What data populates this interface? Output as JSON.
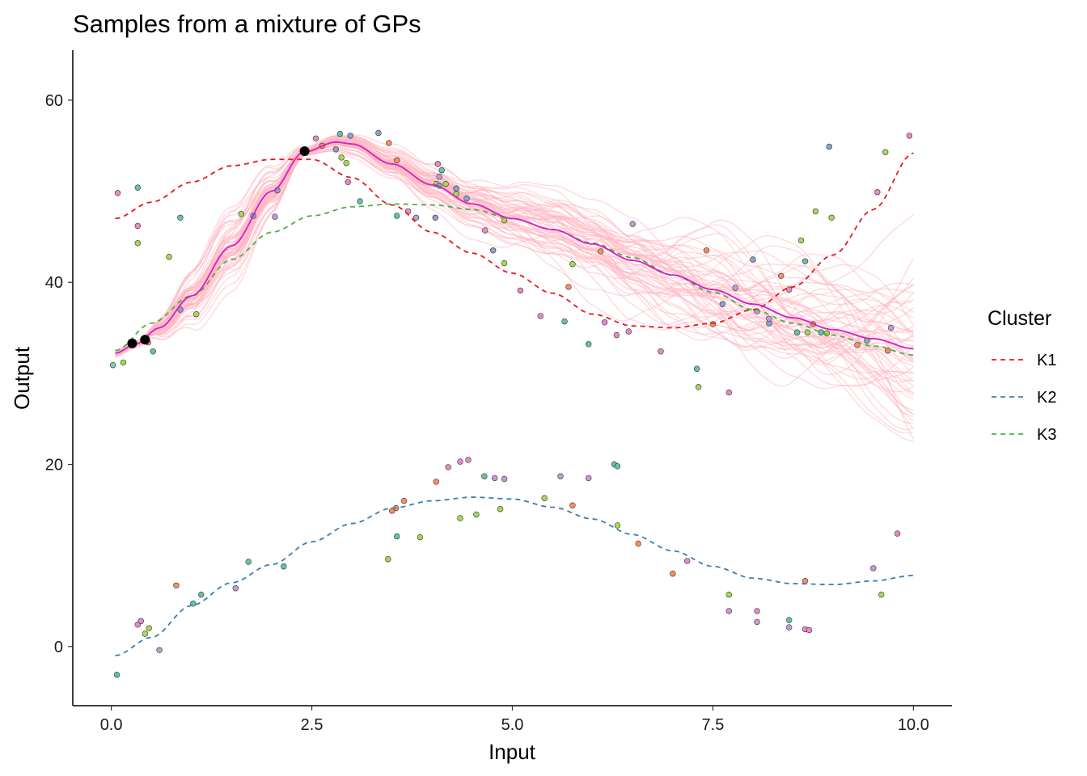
{
  "chart_data": {
    "type": "line",
    "title": "Samples from a mixture of GPs",
    "xlabel": "Input",
    "ylabel": "Output",
    "xlim": [
      -0.48,
      10.48
    ],
    "ylim": [
      -6.5,
      65.5
    ],
    "xticks": [
      0,
      2.5,
      5,
      7.5,
      10
    ],
    "xtick_labels": [
      "0.0",
      "2.5",
      "5.0",
      "7.5",
      "10.0"
    ],
    "yticks": [
      0,
      20,
      40,
      60
    ],
    "ytick_labels": [
      "0",
      "20",
      "40",
      "60"
    ],
    "grid": false,
    "legend": {
      "title": "Cluster",
      "placement": "right",
      "entries": [
        {
          "label": "K1",
          "color": "#e41a1c"
        },
        {
          "label": "K2",
          "color": "#377eb8"
        },
        {
          "label": "K3",
          "color": "#4daf4a"
        }
      ]
    },
    "cluster_means": [
      {
        "name": "K1",
        "color": "#e41a1c",
        "dash": true,
        "points": [
          [
            0.05,
            47.0
          ],
          [
            0.5,
            48.8
          ],
          [
            1.0,
            51.0
          ],
          [
            1.5,
            52.8
          ],
          [
            2.0,
            53.5
          ],
          [
            2.5,
            53.5
          ],
          [
            3.0,
            51.5
          ],
          [
            3.5,
            48.5
          ],
          [
            4.0,
            45.5
          ],
          [
            4.5,
            43.2
          ],
          [
            5.0,
            41.0
          ],
          [
            5.5,
            38.8
          ],
          [
            6.0,
            36.5
          ],
          [
            6.5,
            35.2
          ],
          [
            7.0,
            35.0
          ],
          [
            7.5,
            35.5
          ],
          [
            8.0,
            37.0
          ],
          [
            8.5,
            39.5
          ],
          [
            9.0,
            43.0
          ],
          [
            9.5,
            48.0
          ],
          [
            10.0,
            54.2
          ]
        ]
      },
      {
        "name": "K2",
        "color": "#377eb8",
        "dash": true,
        "points": [
          [
            0.05,
            -1.0
          ],
          [
            0.5,
            1.0
          ],
          [
            1.0,
            4.5
          ],
          [
            1.5,
            7.0
          ],
          [
            2.0,
            9.0
          ],
          [
            2.5,
            11.5
          ],
          [
            3.0,
            13.5
          ],
          [
            3.5,
            15.2
          ],
          [
            4.0,
            16.0
          ],
          [
            4.5,
            16.4
          ],
          [
            5.0,
            16.2
          ],
          [
            5.5,
            15.3
          ],
          [
            6.0,
            14.0
          ],
          [
            6.5,
            12.3
          ],
          [
            7.0,
            10.5
          ],
          [
            7.5,
            8.8
          ],
          [
            8.0,
            7.5
          ],
          [
            8.5,
            6.9
          ],
          [
            9.0,
            6.8
          ],
          [
            9.5,
            7.2
          ],
          [
            10.0,
            7.8
          ]
        ]
      },
      {
        "name": "K3",
        "color": "#4daf4a",
        "dash": true,
        "points": [
          [
            0.05,
            32.5
          ],
          [
            0.5,
            35.5
          ],
          [
            1.0,
            38.5
          ],
          [
            1.5,
            42.5
          ],
          [
            2.0,
            45.5
          ],
          [
            2.5,
            47.3
          ],
          [
            3.0,
            48.3
          ],
          [
            3.5,
            48.6
          ],
          [
            4.0,
            48.5
          ],
          [
            4.5,
            48.0
          ],
          [
            5.0,
            47.0
          ],
          [
            5.5,
            45.8
          ],
          [
            6.0,
            44.3
          ],
          [
            6.5,
            42.7
          ],
          [
            7.0,
            40.8
          ],
          [
            7.5,
            38.9
          ],
          [
            8.0,
            37.0
          ],
          [
            8.5,
            35.5
          ],
          [
            9.0,
            34.2
          ],
          [
            9.5,
            33.0
          ],
          [
            10.0,
            32.0
          ]
        ]
      }
    ],
    "prediction_mean": {
      "color": "#d61dc8",
      "points": [
        [
          0.05,
          32.2
        ],
        [
          0.3,
          33.2
        ],
        [
          0.6,
          35.0
        ],
        [
          1.0,
          38.5
        ],
        [
          1.5,
          44.0
        ],
        [
          2.0,
          50.0
        ],
        [
          2.4,
          54.3
        ],
        [
          2.8,
          55.4
        ],
        [
          3.0,
          55.2
        ],
        [
          3.5,
          53.0
        ],
        [
          4.0,
          50.7
        ],
        [
          4.5,
          48.6
        ],
        [
          5.0,
          47.0
        ],
        [
          5.5,
          45.8
        ],
        [
          6.0,
          44.2
        ],
        [
          6.5,
          42.4
        ],
        [
          7.0,
          40.8
        ],
        [
          7.5,
          39.2
        ],
        [
          8.0,
          37.6
        ],
        [
          8.5,
          36.1
        ],
        [
          9.0,
          34.8
        ],
        [
          9.5,
          33.8
        ],
        [
          10.0,
          32.7
        ]
      ]
    },
    "training_points": {
      "color": "#000000",
      "points": [
        [
          0.26,
          33.3
        ],
        [
          0.42,
          33.7
        ],
        [
          2.41,
          54.4
        ]
      ]
    },
    "posterior_samples": {
      "color": "#ffb6c1",
      "count": 60
    },
    "observations": [
      {
        "x": 0.02,
        "y": 30.9,
        "c": "#7fcdbb"
      },
      {
        "x": 0.08,
        "y": 49.8,
        "c": "#e78ac3"
      },
      {
        "x": 0.15,
        "y": 31.2,
        "c": "#a6d854"
      },
      {
        "x": 0.33,
        "y": 50.4,
        "c": "#66c2a5"
      },
      {
        "x": 0.33,
        "y": 46.2,
        "c": "#e78ac3"
      },
      {
        "x": 0.33,
        "y": 44.3,
        "c": "#a6d854"
      },
      {
        "x": 0.46,
        "y": 33.4,
        "c": "#fc8d62"
      },
      {
        "x": 0.52,
        "y": 32.4,
        "c": "#66c2a5"
      },
      {
        "x": 0.72,
        "y": 42.8,
        "c": "#a6d854"
      },
      {
        "x": 0.86,
        "y": 47.1,
        "c": "#66c2a5"
      },
      {
        "x": 0.86,
        "y": 37.0,
        "c": "#8da0cb"
      },
      {
        "x": 1.06,
        "y": 36.5,
        "c": "#a6d854"
      },
      {
        "x": 1.62,
        "y": 47.5,
        "c": "#a6d854"
      },
      {
        "x": 1.77,
        "y": 47.3,
        "c": "#8da0cb"
      },
      {
        "x": 2.04,
        "y": 47.2,
        "c": "#c39bd3"
      },
      {
        "x": 2.07,
        "y": 50.1,
        "c": "#8da0cb"
      },
      {
        "x": 2.55,
        "y": 55.8,
        "c": "#e78ac3"
      },
      {
        "x": 2.63,
        "y": 55.0,
        "c": "#fc8d62"
      },
      {
        "x": 2.8,
        "y": 54.6,
        "c": "#8da0cb"
      },
      {
        "x": 2.85,
        "y": 56.3,
        "c": "#66c2a5"
      },
      {
        "x": 2.87,
        "y": 53.7,
        "c": "#a6d854"
      },
      {
        "x": 2.93,
        "y": 53.1,
        "c": "#a6d854"
      },
      {
        "x": 2.95,
        "y": 51.0,
        "c": "#e78ac3"
      },
      {
        "x": 2.98,
        "y": 56.1,
        "c": "#8da0cb"
      },
      {
        "x": 3.1,
        "y": 48.9,
        "c": "#66c2a5"
      },
      {
        "x": 3.33,
        "y": 56.4,
        "c": "#8da0cb"
      },
      {
        "x": 3.46,
        "y": 55.3,
        "c": "#fc8d62"
      },
      {
        "x": 3.56,
        "y": 53.4,
        "c": "#fc8d62"
      },
      {
        "x": 3.56,
        "y": 47.3,
        "c": "#66c2a5"
      },
      {
        "x": 3.7,
        "y": 47.8,
        "c": "#e78ac3"
      },
      {
        "x": 3.8,
        "y": 47.1,
        "c": "#c39bd3"
      },
      {
        "x": 4.04,
        "y": 47.1,
        "c": "#8da0cb"
      },
      {
        "x": 4.05,
        "y": 50.8,
        "c": "#a6d854"
      },
      {
        "x": 4.07,
        "y": 53.0,
        "c": "#e78ac3"
      },
      {
        "x": 4.09,
        "y": 51.6,
        "c": "#c39bd3"
      },
      {
        "x": 4.09,
        "y": 50.6,
        "c": "#66c2a5"
      },
      {
        "x": 4.12,
        "y": 52.3,
        "c": "#66c2a5"
      },
      {
        "x": 4.17,
        "y": 50.8,
        "c": "#a6d854"
      },
      {
        "x": 4.3,
        "y": 49.7,
        "c": "#a6d854"
      },
      {
        "x": 4.3,
        "y": 50.3,
        "c": "#8da0cb"
      },
      {
        "x": 4.43,
        "y": 49.2,
        "c": "#8da0cb"
      },
      {
        "x": 4.66,
        "y": 45.7,
        "c": "#e78ac3"
      },
      {
        "x": 4.76,
        "y": 43.5,
        "c": "#8da0cb"
      },
      {
        "x": 4.9,
        "y": 46.8,
        "c": "#a6d854"
      },
      {
        "x": 4.9,
        "y": 42.1,
        "c": "#a6d854"
      },
      {
        "x": 5.1,
        "y": 39.1,
        "c": "#e78ac3"
      },
      {
        "x": 5.35,
        "y": 36.3,
        "c": "#e78ac3"
      },
      {
        "x": 5.65,
        "y": 35.7,
        "c": "#66c2a5"
      },
      {
        "x": 5.7,
        "y": 39.5,
        "c": "#fc8d62"
      },
      {
        "x": 5.75,
        "y": 42.0,
        "c": "#a6d854"
      },
      {
        "x": 5.95,
        "y": 33.2,
        "c": "#66c2a5"
      },
      {
        "x": 6.1,
        "y": 43.4,
        "c": "#fc8d62"
      },
      {
        "x": 6.15,
        "y": 35.6,
        "c": "#e78ac3"
      },
      {
        "x": 6.3,
        "y": 34.2,
        "c": "#e78ac3"
      },
      {
        "x": 6.45,
        "y": 34.6,
        "c": "#e78ac3"
      },
      {
        "x": 6.5,
        "y": 46.4,
        "c": "#c39bd3"
      },
      {
        "x": 6.85,
        "y": 32.4,
        "c": "#e78ac3"
      },
      {
        "x": 7.3,
        "y": 30.5,
        "c": "#66c2a5"
      },
      {
        "x": 7.32,
        "y": 28.5,
        "c": "#a6d854"
      },
      {
        "x": 7.42,
        "y": 43.5,
        "c": "#fc8d62"
      },
      {
        "x": 7.5,
        "y": 35.4,
        "c": "#fc8d62"
      },
      {
        "x": 7.62,
        "y": 37.6,
        "c": "#8da0cb"
      },
      {
        "x": 7.7,
        "y": 27.9,
        "c": "#e78ac3"
      },
      {
        "x": 7.78,
        "y": 39.4,
        "c": "#c39bd3"
      },
      {
        "x": 8.0,
        "y": 42.5,
        "c": "#8da0cb"
      },
      {
        "x": 8.05,
        "y": 36.8,
        "c": "#c39bd3"
      },
      {
        "x": 8.2,
        "y": 35.5,
        "c": "#8da0cb"
      },
      {
        "x": 8.2,
        "y": 36.0,
        "c": "#c39bd3"
      },
      {
        "x": 8.35,
        "y": 40.7,
        "c": "#fc8d62"
      },
      {
        "x": 8.45,
        "y": 39.2,
        "c": "#e78ac3"
      },
      {
        "x": 8.55,
        "y": 34.5,
        "c": "#66c2a5"
      },
      {
        "x": 8.6,
        "y": 44.6,
        "c": "#a6d854"
      },
      {
        "x": 8.65,
        "y": 42.3,
        "c": "#66c2a5"
      },
      {
        "x": 8.68,
        "y": 34.5,
        "c": "#a6d854"
      },
      {
        "x": 8.75,
        "y": 35.4,
        "c": "#fc8d62"
      },
      {
        "x": 8.78,
        "y": 47.8,
        "c": "#a6d854"
      },
      {
        "x": 8.85,
        "y": 34.5,
        "c": "#66c2a5"
      },
      {
        "x": 8.92,
        "y": 34.4,
        "c": "#a6d854"
      },
      {
        "x": 8.95,
        "y": 54.9,
        "c": "#8da0cb"
      },
      {
        "x": 8.98,
        "y": 47.1,
        "c": "#a6d854"
      },
      {
        "x": 9.3,
        "y": 33.1,
        "c": "#fc8d62"
      },
      {
        "x": 9.42,
        "y": 33.6,
        "c": "#66c2a5"
      },
      {
        "x": 9.55,
        "y": 49.9,
        "c": "#e78ac3"
      },
      {
        "x": 9.65,
        "y": 54.3,
        "c": "#a6d854"
      },
      {
        "x": 9.68,
        "y": 32.5,
        "c": "#fc8d62"
      },
      {
        "x": 9.72,
        "y": 35.0,
        "c": "#c39bd3"
      },
      {
        "x": 9.95,
        "y": 56.1,
        "c": "#e78ac3"
      },
      {
        "x": 0.07,
        "y": -3.1,
        "c": "#66c2a5"
      },
      {
        "x": 0.33,
        "y": 2.4,
        "c": "#e78ac3"
      },
      {
        "x": 0.37,
        "y": 2.8,
        "c": "#e78ac3"
      },
      {
        "x": 0.42,
        "y": 1.4,
        "c": "#a6d854"
      },
      {
        "x": 0.47,
        "y": 2.0,
        "c": "#a6d854"
      },
      {
        "x": 0.6,
        "y": -0.4,
        "c": "#c39bd3"
      },
      {
        "x": 0.81,
        "y": 6.7,
        "c": "#fc8d62"
      },
      {
        "x": 1.02,
        "y": 4.7,
        "c": "#66c2a5"
      },
      {
        "x": 1.12,
        "y": 5.7,
        "c": "#66c2a5"
      },
      {
        "x": 1.55,
        "y": 6.4,
        "c": "#c39bd3"
      },
      {
        "x": 1.71,
        "y": 9.3,
        "c": "#66c2a5"
      },
      {
        "x": 2.15,
        "y": 8.8,
        "c": "#66c2a5"
      },
      {
        "x": 3.45,
        "y": 9.6,
        "c": "#a6d854"
      },
      {
        "x": 3.5,
        "y": 14.9,
        "c": "#fc8d62"
      },
      {
        "x": 3.55,
        "y": 15.2,
        "c": "#fc8d62"
      },
      {
        "x": 3.56,
        "y": 12.1,
        "c": "#66c2a5"
      },
      {
        "x": 3.65,
        "y": 16.0,
        "c": "#fc8d62"
      },
      {
        "x": 3.85,
        "y": 12.0,
        "c": "#a6d854"
      },
      {
        "x": 4.05,
        "y": 18.1,
        "c": "#fc8d62"
      },
      {
        "x": 4.2,
        "y": 19.7,
        "c": "#e78ac3"
      },
      {
        "x": 4.35,
        "y": 20.3,
        "c": "#e78ac3"
      },
      {
        "x": 4.35,
        "y": 14.1,
        "c": "#a6d854"
      },
      {
        "x": 4.45,
        "y": 20.5,
        "c": "#e78ac3"
      },
      {
        "x": 4.55,
        "y": 14.5,
        "c": "#a6d854"
      },
      {
        "x": 4.65,
        "y": 18.7,
        "c": "#66c2a5"
      },
      {
        "x": 4.78,
        "y": 18.5,
        "c": "#c39bd3"
      },
      {
        "x": 4.85,
        "y": 15.1,
        "c": "#a6d854"
      },
      {
        "x": 4.9,
        "y": 18.4,
        "c": "#c39bd3"
      },
      {
        "x": 5.4,
        "y": 16.3,
        "c": "#a6d854"
      },
      {
        "x": 5.6,
        "y": 18.7,
        "c": "#c39bd3"
      },
      {
        "x": 5.75,
        "y": 15.5,
        "c": "#fc8d62"
      },
      {
        "x": 5.95,
        "y": 18.5,
        "c": "#c39bd3"
      },
      {
        "x": 6.27,
        "y": 20.0,
        "c": "#66c2a5"
      },
      {
        "x": 6.31,
        "y": 19.8,
        "c": "#66c2a5"
      },
      {
        "x": 6.31,
        "y": 13.3,
        "c": "#a6d854"
      },
      {
        "x": 6.57,
        "y": 11.3,
        "c": "#fc8d62"
      },
      {
        "x": 7.0,
        "y": 8.0,
        "c": "#fc8d62"
      },
      {
        "x": 7.18,
        "y": 9.4,
        "c": "#e78ac3"
      },
      {
        "x": 7.7,
        "y": 5.7,
        "c": "#a6d854"
      },
      {
        "x": 7.7,
        "y": 3.9,
        "c": "#c39bd3"
      },
      {
        "x": 8.05,
        "y": 3.9,
        "c": "#e78ac3"
      },
      {
        "x": 8.05,
        "y": 2.7,
        "c": "#c39bd3"
      },
      {
        "x": 8.45,
        "y": 2.9,
        "c": "#66c2a5"
      },
      {
        "x": 8.45,
        "y": 2.1,
        "c": "#c39bd3"
      },
      {
        "x": 8.65,
        "y": 7.2,
        "c": "#fc8d62"
      },
      {
        "x": 8.65,
        "y": 1.9,
        "c": "#e78ac3"
      },
      {
        "x": 8.7,
        "y": 1.8,
        "c": "#e78ac3"
      },
      {
        "x": 9.5,
        "y": 8.6,
        "c": "#c39bd3"
      },
      {
        "x": 9.6,
        "y": 5.7,
        "c": "#a6d854"
      },
      {
        "x": 9.8,
        "y": 12.4,
        "c": "#e78ac3"
      }
    ]
  }
}
